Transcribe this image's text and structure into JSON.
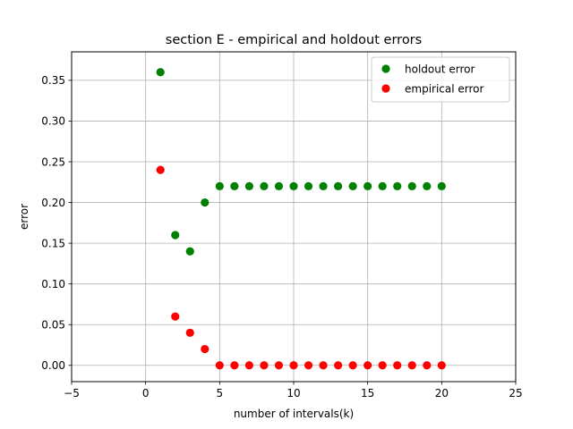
{
  "chart_data": {
    "type": "scatter",
    "title": "section E - empirical and holdout errors",
    "xlabel": "number of intervals(k)",
    "ylabel": "error",
    "xlim": [
      -5,
      25
    ],
    "ylim": [
      -0.02,
      0.385
    ],
    "xticks": [
      -5,
      0,
      5,
      10,
      15,
      20,
      25
    ],
    "xtick_labels": [
      "−5",
      "0",
      "5",
      "10",
      "15",
      "20",
      "25"
    ],
    "yticks": [
      0.0,
      0.05,
      0.1,
      0.15,
      0.2,
      0.25,
      0.3,
      0.35
    ],
    "ytick_labels": [
      "0.00",
      "0.05",
      "0.10",
      "0.15",
      "0.20",
      "0.25",
      "0.30",
      "0.35"
    ],
    "grid": true,
    "legend_position": "top-right",
    "series": [
      {
        "name": "holdout error",
        "color": "#008000",
        "x": [
          1,
          2,
          3,
          4,
          5,
          6,
          7,
          8,
          9,
          10,
          11,
          12,
          13,
          14,
          15,
          16,
          17,
          18,
          19,
          20
        ],
        "y": [
          0.36,
          0.16,
          0.14,
          0.2,
          0.22,
          0.22,
          0.22,
          0.22,
          0.22,
          0.22,
          0.22,
          0.22,
          0.22,
          0.22,
          0.22,
          0.22,
          0.22,
          0.22,
          0.22,
          0.22
        ]
      },
      {
        "name": "empirical error",
        "color": "#ff0000",
        "x": [
          1,
          2,
          3,
          4,
          5,
          6,
          7,
          8,
          9,
          10,
          11,
          12,
          13,
          14,
          15,
          16,
          17,
          18,
          19,
          20
        ],
        "y": [
          0.24,
          0.06,
          0.04,
          0.02,
          0.0,
          0.0,
          0.0,
          0.0,
          0.0,
          0.0,
          0.0,
          0.0,
          0.0,
          0.0,
          0.0,
          0.0,
          0.0,
          0.0,
          0.0,
          0.0
        ]
      }
    ]
  }
}
